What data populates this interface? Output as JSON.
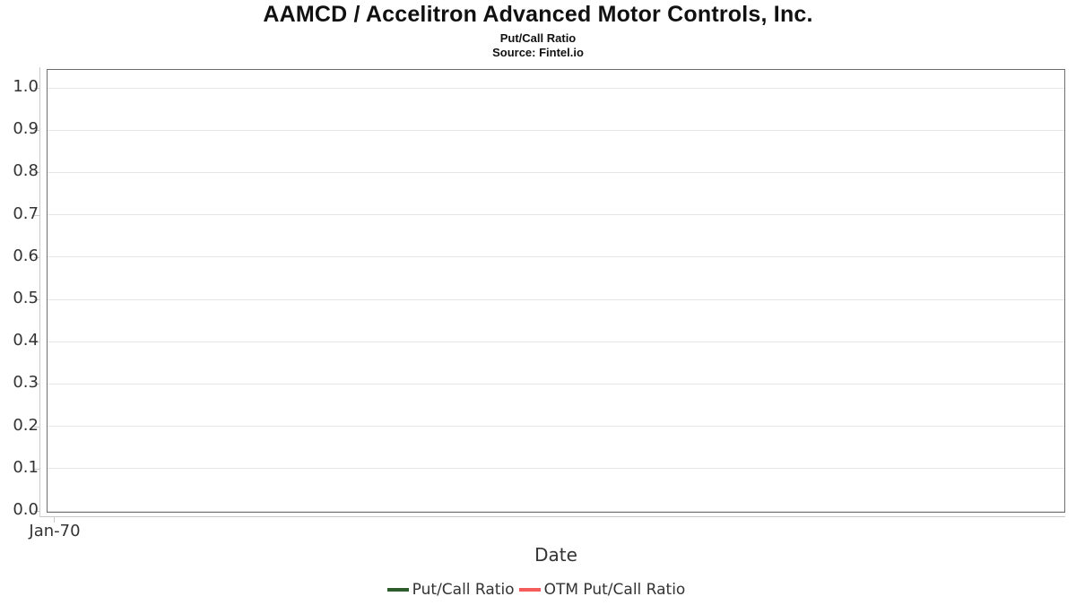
{
  "header": {
    "title": "AAMCD / Accelitron Advanced Motor Controls, Inc.",
    "subtitle": "Put/Call Ratio",
    "source": "Source: Fintel.io"
  },
  "chart_data": {
    "type": "line",
    "title": "AAMCD / Accelitron Advanced Motor Controls, Inc.",
    "subtitle": "Put/Call Ratio",
    "source": "Source: Fintel.io",
    "xlabel": "Date",
    "ylabel": "",
    "ylim": [
      0.0,
      1.05
    ],
    "yticks": [
      0.0,
      0.1,
      0.2,
      0.3,
      0.4,
      0.5,
      0.6,
      0.7,
      0.8,
      0.9,
      1.0
    ],
    "xticks": [
      "Jan-70"
    ],
    "grid": "horizontal-on",
    "legend_position": "bottom-center",
    "plot_empty": true,
    "series": [
      {
        "name": "Put/Call Ratio",
        "color": "#2d5c2d",
        "x": [],
        "values": []
      },
      {
        "name": "OTM Put/Call Ratio",
        "color": "#f45b5b",
        "x": [],
        "values": []
      }
    ]
  },
  "axes": {
    "x_axis_title": "Date",
    "x_tick_label": "Jan-70"
  },
  "legend": {
    "items": [
      {
        "label": "Put/Call Ratio",
        "color": "#2d5c2d"
      },
      {
        "label": "OTM Put/Call Ratio",
        "color": "#f45b5b"
      }
    ]
  },
  "colors": {
    "plot_border": "#6e6e6e",
    "gridline": "#e6e6e6",
    "axis_line": "#c9c9c9",
    "tick_text": "#333333",
    "title_text": "#111111"
  }
}
